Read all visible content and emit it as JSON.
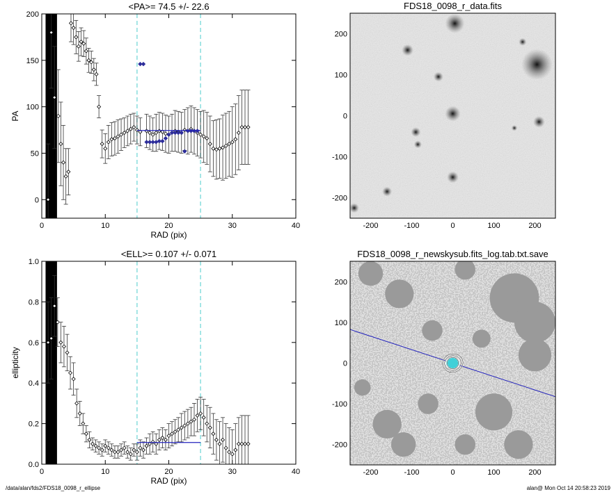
{
  "footer": {
    "left": "/data/alan/fds2/FDS18_0098_r_ellipse",
    "right": "alan@  Mon Oct 14 20:58:23 2019"
  },
  "colors": {
    "axis": "#000000",
    "data": "#000000",
    "highlight": "#2d2d9a",
    "fitline": "#2222bb",
    "bounds": "#88dddd",
    "image_bg": "#e8e8e8",
    "ellipse": "#40d0d8"
  },
  "chart_data": [
    {
      "type": "scatter",
      "title": "<PA>=  74.5 +/-  22.6",
      "xlabel": "RAD (pix)",
      "ylabel": "PA",
      "xlim": [
        0,
        40
      ],
      "ylim": [
        -20,
        200
      ],
      "xticks": [
        0,
        10,
        20,
        30,
        40
      ],
      "yticks": [
        0,
        50,
        100,
        150,
        200
      ],
      "mean_line": {
        "x": [
          15,
          25
        ],
        "y": 74.5
      },
      "bounds_x": [
        15,
        25
      ],
      "series": [
        {
          "x": [
            1.0,
            1.5,
            2.0,
            2.6,
            3.0,
            3.4,
            3.8,
            4.2,
            4.6,
            5.0,
            5.4,
            5.8,
            6.2,
            6.6,
            7.0,
            7.4,
            7.8,
            8.2,
            8.6,
            9.0,
            9.5,
            10.0,
            10.5,
            11.0,
            11.5,
            12.0,
            12.5,
            13.0,
            13.5,
            14.0,
            14.5,
            15.0,
            15.5,
            16.5,
            17.0,
            17.5,
            18.0,
            18.5,
            19.0,
            19.5,
            20.0,
            20.5,
            21.0,
            21.5,
            22.0,
            22.5,
            23.0,
            23.5,
            24.0,
            24.5,
            25.0,
            25.5,
            26.0,
            26.5,
            27.0,
            27.5,
            28.0,
            28.5,
            29.0,
            29.5,
            30.0,
            30.5,
            31.0,
            31.5,
            32.0,
            32.5
          ],
          "y": [
            0,
            180,
            110,
            90,
            60,
            40,
            25,
            30,
            190,
            185,
            175,
            165,
            170,
            168,
            160,
            150,
            148,
            140,
            135,
            100,
            60,
            55,
            62,
            65,
            66,
            68,
            70,
            72,
            74,
            76,
            78,
            75,
            73,
            74,
            72,
            70,
            72,
            74,
            73,
            71,
            70,
            72,
            74,
            73,
            72,
            75,
            74,
            76,
            74,
            72,
            70,
            68,
            66,
            60,
            55,
            54,
            55,
            56,
            58,
            60,
            62,
            65,
            72,
            78,
            78,
            78
          ],
          "err": [
            60,
            60,
            55,
            50,
            45,
            40,
            30,
            25,
            20,
            18,
            18,
            16,
            15,
            14,
            14,
            13,
            12,
            12,
            12,
            12,
            15,
            16,
            18,
            18,
            18,
            18,
            17,
            16,
            16,
            16,
            15,
            15,
            15,
            18,
            18,
            18,
            20,
            20,
            20,
            20,
            20,
            20,
            22,
            22,
            22,
            22,
            25,
            25,
            25,
            25,
            25,
            28,
            28,
            30,
            30,
            32,
            32,
            35,
            35,
            35,
            38,
            38,
            40,
            40,
            40,
            40
          ]
        },
        {
          "name": "fit range",
          "x": [
            15.5,
            16.0,
            16.5,
            17.0,
            17.5,
            18.0,
            18.5,
            19.0,
            19.5,
            20.0,
            20.5,
            21.0,
            21.5,
            22.0,
            22.5,
            23.0,
            23.5,
            24.0,
            24.5
          ],
          "y": [
            146,
            146,
            62,
            62,
            62,
            62,
            63,
            63,
            66,
            70,
            72,
            72,
            72,
            72,
            52,
            74,
            74,
            74,
            74
          ]
        }
      ]
    },
    {
      "type": "image",
      "title": "FDS18_0098_r_data.fits",
      "xlim": [
        -250,
        250
      ],
      "ylim": [
        -250,
        250
      ],
      "xticks": [
        -200,
        -100,
        0,
        100,
        200
      ],
      "yticks": [
        -200,
        -100,
        0,
        100,
        200
      ],
      "sources": [
        {
          "x": 5,
          "y": 225,
          "s": 1.0
        },
        {
          "x": -110,
          "y": 160,
          "s": 0.6
        },
        {
          "x": -35,
          "y": 95,
          "s": 0.5
        },
        {
          "x": 0,
          "y": 5,
          "s": 0.8
        },
        {
          "x": -90,
          "y": -40,
          "s": 0.5
        },
        {
          "x": -85,
          "y": -70,
          "s": 0.4
        },
        {
          "x": 205,
          "y": 125,
          "s": 1.6
        },
        {
          "x": 210,
          "y": -15,
          "s": 0.6
        },
        {
          "x": 170,
          "y": 180,
          "s": 0.4
        },
        {
          "x": -160,
          "y": -185,
          "s": 0.5
        },
        {
          "x": 0,
          "y": -150,
          "s": 0.6
        },
        {
          "x": -240,
          "y": -225,
          "s": 0.5
        },
        {
          "x": 150,
          "y": -30,
          "s": 0.3
        }
      ]
    },
    {
      "type": "scatter",
      "title": "<ELL>= 0.107 +/-  0.071",
      "xlabel": "RAD (pix)",
      "ylabel": "ellipticity",
      "xlim": [
        0,
        40
      ],
      "ylim": [
        0,
        1
      ],
      "xticks": [
        0,
        10,
        20,
        30,
        40
      ],
      "yticks": [
        0.0,
        0.2,
        0.4,
        0.6,
        0.8,
        1.0
      ],
      "yticklabels": [
        "0.0",
        "0.2",
        "0.4",
        "0.6",
        "0.8",
        "1.0"
      ],
      "mean_line": {
        "x": [
          15,
          25
        ],
        "y": 0.107
      },
      "bounds_x": [
        15,
        25
      ],
      "series": [
        {
          "x": [
            1.0,
            1.5,
            2.0,
            2.5,
            3.0,
            3.5,
            4.0,
            4.5,
            5.0,
            5.5,
            6.0,
            6.5,
            7.0,
            7.5,
            8.0,
            8.5,
            9.0,
            9.5,
            10.0,
            10.5,
            11.0,
            11.5,
            12.0,
            12.5,
            13.0,
            13.5,
            14.0,
            14.5,
            15.0,
            15.5,
            16.0,
            16.5,
            17.0,
            17.5,
            18.0,
            18.5,
            19.0,
            19.5,
            20.0,
            20.5,
            21.0,
            21.5,
            22.0,
            22.5,
            23.0,
            23.5,
            24.0,
            24.5,
            25.0,
            25.5,
            26.0,
            26.5,
            27.0,
            27.5,
            28.0,
            28.5,
            29.0,
            29.5,
            30.0,
            30.5,
            31.0,
            31.5,
            32.0,
            32.5
          ],
          "y": [
            0.6,
            0.62,
            0.78,
            0.7,
            0.6,
            0.58,
            0.55,
            0.45,
            0.42,
            0.3,
            0.25,
            0.2,
            0.15,
            0.12,
            0.1,
            0.09,
            0.08,
            0.07,
            0.09,
            0.08,
            0.07,
            0.06,
            0.06,
            0.07,
            0.08,
            0.06,
            0.05,
            0.07,
            0.06,
            0.08,
            0.07,
            0.09,
            0.1,
            0.11,
            0.1,
            0.12,
            0.13,
            0.12,
            0.14,
            0.15,
            0.16,
            0.17,
            0.18,
            0.19,
            0.2,
            0.21,
            0.22,
            0.24,
            0.25,
            0.23,
            0.2,
            0.18,
            0.15,
            0.12,
            0.1,
            0.12,
            0.08,
            0.06,
            0.05,
            0.07,
            0.1,
            0.1,
            0.1,
            0.1
          ],
          "err": [
            0.2,
            0.2,
            0.15,
            0.12,
            0.1,
            0.1,
            0.09,
            0.08,
            0.08,
            0.07,
            0.06,
            0.05,
            0.04,
            0.04,
            0.03,
            0.03,
            0.03,
            0.03,
            0.03,
            0.03,
            0.03,
            0.03,
            0.03,
            0.03,
            0.03,
            0.03,
            0.03,
            0.03,
            0.04,
            0.04,
            0.04,
            0.04,
            0.05,
            0.05,
            0.05,
            0.05,
            0.05,
            0.05,
            0.06,
            0.06,
            0.06,
            0.06,
            0.07,
            0.07,
            0.07,
            0.07,
            0.08,
            0.08,
            0.08,
            0.09,
            0.09,
            0.1,
            0.1,
            0.1,
            0.11,
            0.11,
            0.12,
            0.12,
            0.12,
            0.13,
            0.13,
            0.14,
            0.14,
            0.14
          ]
        }
      ]
    },
    {
      "type": "image",
      "title": "FDS18_0098_r_newskysub.fits_log.tab.txt.save",
      "xlim": [
        -250,
        250
      ],
      "ylim": [
        -250,
        250
      ],
      "xticks": [
        -200,
        -100,
        0,
        100,
        200
      ],
      "yticks": [
        -200,
        -100,
        0,
        100,
        200
      ],
      "mask_regions": [
        {
          "x": -130,
          "y": 170,
          "r": 35
        },
        {
          "x": -200,
          "y": 220,
          "r": 30
        },
        {
          "x": 30,
          "y": 230,
          "r": 25
        },
        {
          "x": 150,
          "y": 160,
          "r": 60
        },
        {
          "x": 200,
          "y": 100,
          "r": 50
        },
        {
          "x": 200,
          "y": 20,
          "r": 40
        },
        {
          "x": -50,
          "y": 80,
          "r": 25
        },
        {
          "x": 70,
          "y": 60,
          "r": 22
        },
        {
          "x": -160,
          "y": -150,
          "r": 35
        },
        {
          "x": -120,
          "y": -200,
          "r": 30
        },
        {
          "x": 100,
          "y": -120,
          "r": 45
        },
        {
          "x": 160,
          "y": -200,
          "r": 35
        },
        {
          "x": 30,
          "y": -200,
          "r": 25
        },
        {
          "x": -60,
          "y": -100,
          "r": 25
        },
        {
          "x": -220,
          "y": -60,
          "r": 20
        }
      ],
      "pa_line": {
        "angle_deg": 74.5
      },
      "ellipses": [
        {
          "a": 14,
          "e": 0.0
        },
        {
          "a": 20,
          "e": 0.1
        },
        {
          "a": 25,
          "e": 0.1
        }
      ]
    }
  ]
}
